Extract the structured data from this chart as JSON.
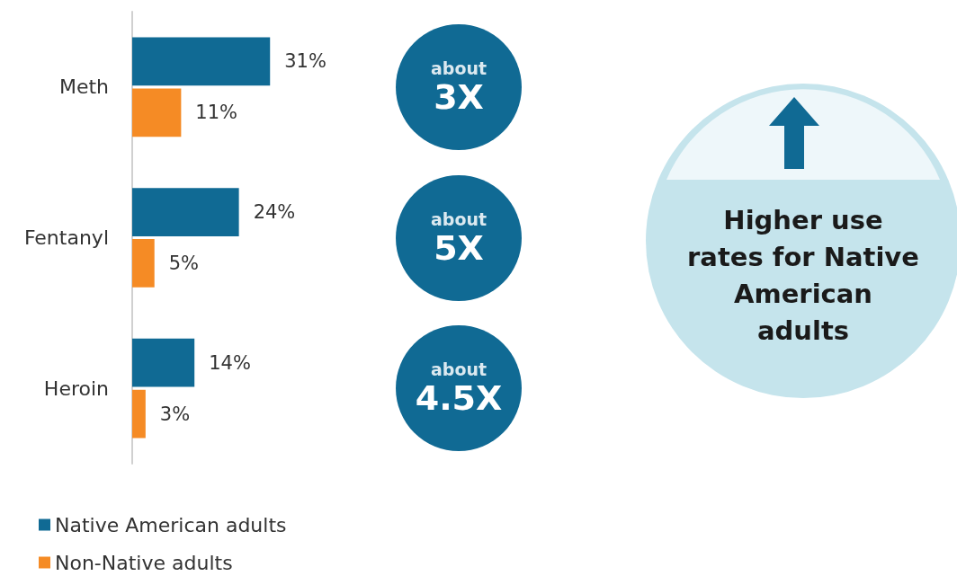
{
  "chart_data": {
    "type": "bar",
    "orientation": "horizontal",
    "categories": [
      "Meth",
      "Fentanyl",
      "Heroin"
    ],
    "series": [
      {
        "name": "Native American adults",
        "color": "#106a94",
        "values": [
          31,
          24,
          14
        ],
        "value_labels": [
          "31%",
          "24%",
          "14%"
        ]
      },
      {
        "name": "Non-Native adults",
        "color": "#f58b25",
        "values": [
          11,
          5,
          3
        ],
        "value_labels": [
          "11%",
          "5%",
          "3%"
        ]
      }
    ],
    "legend": "bottom left",
    "annotations": [
      "about 3X",
      "about 5X",
      "about 4.5X",
      "Higher use rates for Native American adults"
    ]
  }
}
